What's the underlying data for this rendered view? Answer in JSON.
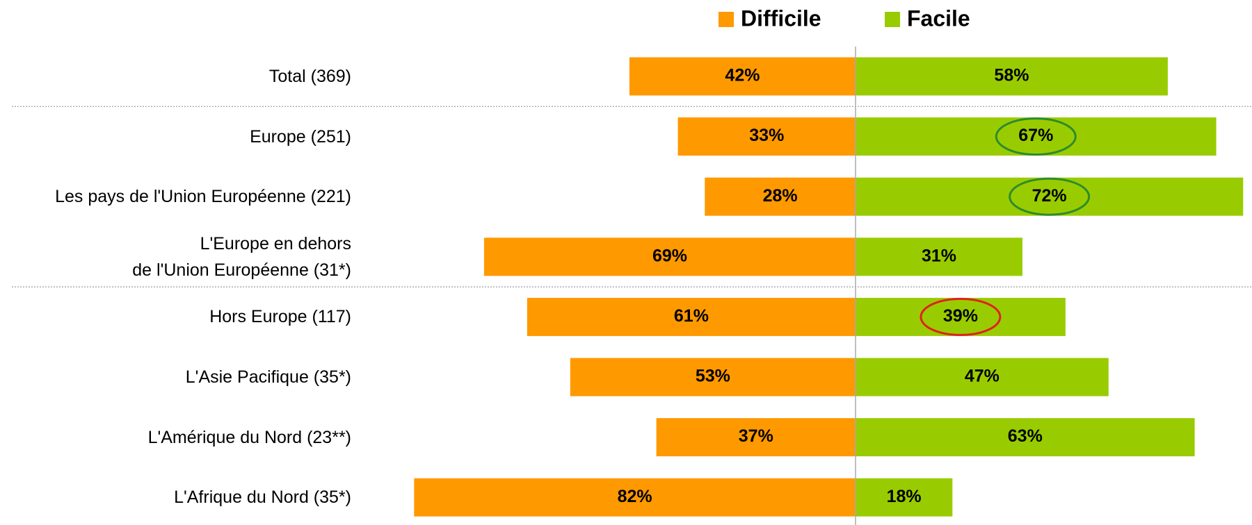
{
  "chart_data": {
    "type": "diverging_bar",
    "categories": [
      "Total (369)",
      "Europe (251)",
      "Les pays de l'Union Européenne (221)",
      "L'Europe en dehors\nde l'Union Européenne (31*)",
      "Hors Europe (117)",
      "L'Asie Pacifique (35*)",
      "L'Amérique du Nord (23**)",
      "L'Afrique du Nord (35*)"
    ],
    "series": [
      {
        "name": "Difficile",
        "color": "#ff9900",
        "values": [
          42,
          33,
          28,
          69,
          61,
          53,
          37,
          82
        ],
        "value_labels": [
          "42%",
          "33%",
          "28%",
          "69%",
          "61%",
          "53%",
          "37%",
          "82%"
        ]
      },
      {
        "name": "Facile",
        "color": "#99cc00",
        "values": [
          58,
          67,
          72,
          31,
          39,
          47,
          63,
          18
        ],
        "value_labels": [
          "58%",
          "67%",
          "72%",
          "31%",
          "39%",
          "47%",
          "63%",
          "18%"
        ],
        "circle_colors": [
          null,
          "#2e8b2e",
          "#2e8b2e",
          null,
          "#e0201e",
          null,
          null,
          null
        ]
      }
    ]
  }
}
